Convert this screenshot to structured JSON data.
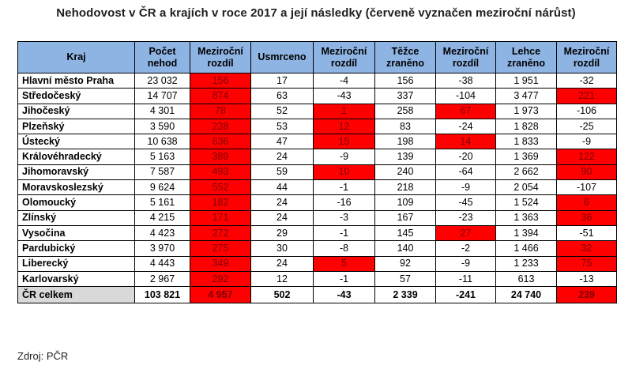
{
  "title": "Nehodovost v ČR a krajích v roce 2017 a její následky (červeně vyznačen meziroční nárůst)",
  "headers": [
    "Kraj",
    "Počet nehod",
    "Meziroční rozdíl",
    "Usmrceno",
    "Meziroční rozdíl",
    "Těžce zraněno",
    "Meziroční rozdíl",
    "Lehce zraněno",
    "Meziroční rozdíl"
  ],
  "rows": [
    {
      "cells": [
        "Hlavní město Praha",
        "23 032",
        "156",
        "17",
        "-4",
        "156",
        "-38",
        "1 951",
        "-32"
      ],
      "red": [
        false,
        false,
        true,
        false,
        false,
        false,
        false,
        false,
        false
      ]
    },
    {
      "cells": [
        "Středočeský",
        "14 707",
        "874",
        "63",
        "-43",
        "337",
        "-104",
        "3 477",
        "221"
      ],
      "red": [
        false,
        false,
        true,
        false,
        false,
        false,
        false,
        false,
        true
      ]
    },
    {
      "cells": [
        "Jihočeský",
        "4 301",
        "78",
        "52",
        "1",
        "258",
        "67",
        "1 973",
        "-106"
      ],
      "red": [
        false,
        false,
        true,
        false,
        true,
        false,
        true,
        false,
        false
      ]
    },
    {
      "cells": [
        "Plzeňský",
        "3 590",
        "238",
        "53",
        "12",
        "83",
        "-24",
        "1 828",
        "-25"
      ],
      "red": [
        false,
        false,
        true,
        false,
        true,
        false,
        false,
        false,
        false
      ]
    },
    {
      "cells": [
        "Ústecký",
        "10 638",
        "636",
        "47",
        "15",
        "198",
        "14",
        "1 833",
        "-9"
      ],
      "red": [
        false,
        false,
        true,
        false,
        true,
        false,
        true,
        false,
        false
      ]
    },
    {
      "cells": [
        "Královéhradecký",
        "5 163",
        "389",
        "24",
        "-9",
        "139",
        "-20",
        "1 369",
        "122"
      ],
      "red": [
        false,
        false,
        true,
        false,
        false,
        false,
        false,
        false,
        true
      ]
    },
    {
      "cells": [
        "Jihomoravský",
        "7 587",
        "493",
        "59",
        "10",
        "240",
        "-64",
        "2 662",
        "90"
      ],
      "red": [
        false,
        false,
        true,
        false,
        true,
        false,
        false,
        false,
        true
      ]
    },
    {
      "cells": [
        "Moravskoslezský",
        "9 624",
        "552",
        "44",
        "-1",
        "218",
        "-9",
        "2 054",
        "-107"
      ],
      "red": [
        false,
        false,
        true,
        false,
        false,
        false,
        false,
        false,
        false
      ]
    },
    {
      "cells": [
        "Olomoucký",
        "5 161",
        "182",
        "24",
        "-16",
        "109",
        "-45",
        "1 524",
        "6"
      ],
      "red": [
        false,
        false,
        true,
        false,
        false,
        false,
        false,
        false,
        true
      ]
    },
    {
      "cells": [
        "Zlínský",
        "4 215",
        "171",
        "24",
        "-3",
        "167",
        "-23",
        "1 363",
        "36"
      ],
      "red": [
        false,
        false,
        true,
        false,
        false,
        false,
        false,
        false,
        true
      ]
    },
    {
      "cells": [
        "Vysočina",
        "4 423",
        "272",
        "29",
        "-1",
        "145",
        "27",
        "1 394",
        "-51"
      ],
      "red": [
        false,
        false,
        true,
        false,
        false,
        false,
        true,
        false,
        false
      ]
    },
    {
      "cells": [
        "Pardubický",
        "3 970",
        "275",
        "30",
        "-8",
        "140",
        "-2",
        "1 466",
        "32"
      ],
      "red": [
        false,
        false,
        true,
        false,
        false,
        false,
        false,
        false,
        true
      ]
    },
    {
      "cells": [
        "Liberecký",
        "4 443",
        "349",
        "24",
        "5",
        "92",
        "-9",
        "1 233",
        "75"
      ],
      "red": [
        false,
        false,
        true,
        false,
        true,
        false,
        false,
        false,
        true
      ]
    },
    {
      "cells": [
        "Karlovarský",
        "2 967",
        "292",
        "12",
        "-1",
        "57",
        "-11",
        "613",
        "-13"
      ],
      "red": [
        false,
        false,
        true,
        false,
        false,
        false,
        false,
        false,
        false
      ]
    }
  ],
  "total": {
    "cells": [
      "ČR celkem",
      "103 821",
      "4 957",
      "502",
      "-43",
      "2 339",
      "-241",
      "24 740",
      "239"
    ],
    "red": [
      false,
      false,
      true,
      false,
      false,
      false,
      false,
      false,
      true
    ]
  },
  "source": "Zdroj: PČR",
  "colors": {
    "header_bg": "#8eb4e3",
    "increase_bg": "#ff0000",
    "total_label_bg": "#d9d9d9"
  }
}
